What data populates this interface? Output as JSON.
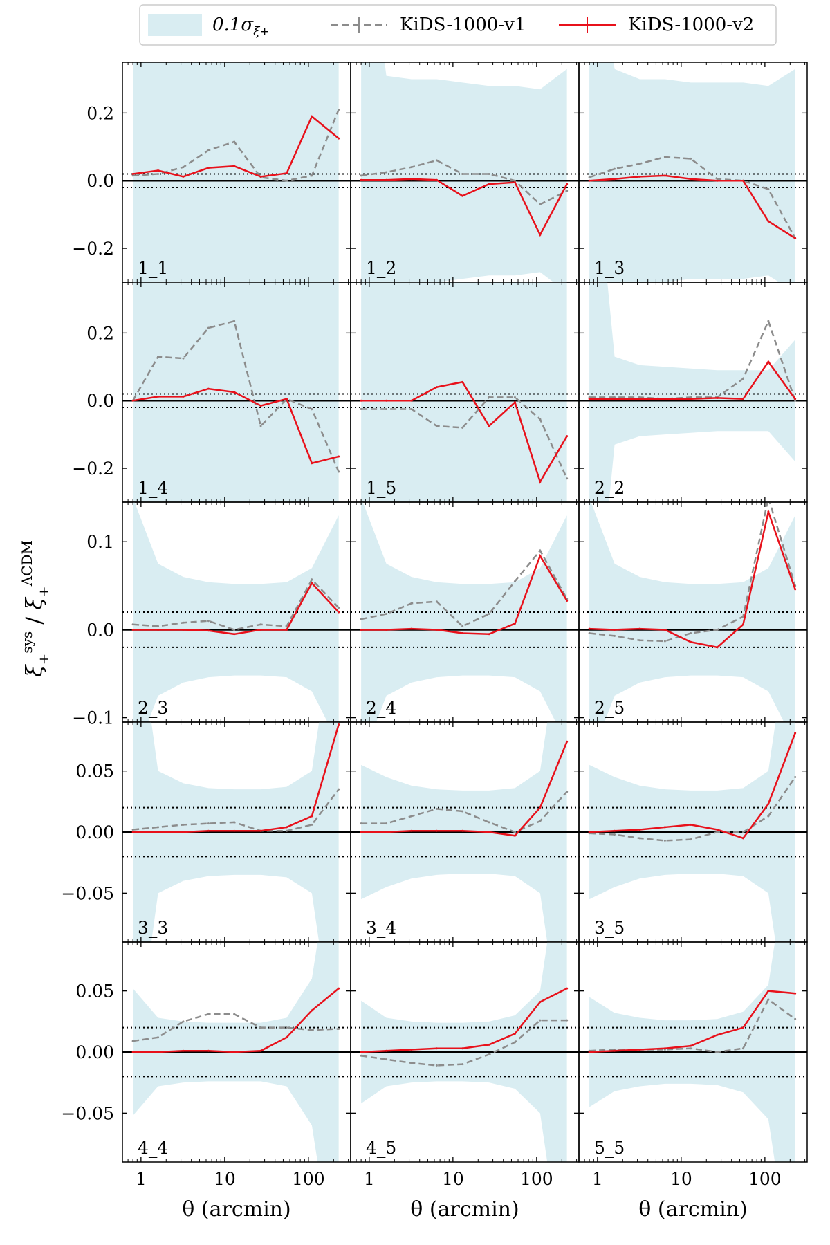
{
  "chart_data": {
    "type": "line",
    "ylabel": "ξ₊^sys / ξ₊^ΛCDM",
    "xlabel": "θ (arcmin)",
    "x_scale": "log",
    "xlim": [
      0.6,
      320
    ],
    "x_ticks": [
      1,
      10,
      100
    ],
    "x_tick_labels": [
      "1",
      "10",
      "100"
    ],
    "reference_lines": {
      "zero": 0,
      "dotted": [
        0.02,
        -0.02
      ]
    },
    "legend": {
      "placement": "top-center",
      "band": "0.1σ",
      "band_subscript": "ξ+",
      "series": [
        "KiDS-1000-v1",
        "KiDS-1000-v2"
      ]
    },
    "colors": {
      "band": "#d9edf2",
      "v1": "#8c8c8c",
      "v2": "#e8111b",
      "axes": "#000000"
    },
    "x": [
      0.8,
      1.6,
      3.2,
      6.4,
      13,
      27,
      55,
      110,
      230
    ],
    "rows": [
      {
        "ylim": [
          -0.3,
          0.35
        ],
        "yticks": [
          -0.2,
          0.0,
          0.2
        ],
        "ytick_labels": [
          "−0.2",
          "0.0",
          "0.2"
        ],
        "panels": [
          {
            "label": "1_1",
            "band": [
              0.9,
              0.9,
              0.9,
              0.9,
              0.9,
              0.9,
              0.9,
              0.9,
              0.9
            ],
            "v1": [
              0.015,
              0.02,
              0.04,
              0.09,
              0.115,
              0.01,
              0.0,
              0.015,
              0.21
            ],
            "v2": [
              0.02,
              0.03,
              0.012,
              0.038,
              0.043,
              0.012,
              0.022,
              0.19,
              0.125
            ]
          },
          {
            "label": "1_2",
            "band": [
              0.9,
              0.31,
              0.3,
              0.3,
              0.29,
              0.28,
              0.28,
              0.27,
              0.33
            ],
            "v1": [
              0.015,
              0.025,
              0.04,
              0.06,
              0.02,
              0.02,
              0.0,
              -0.07,
              -0.03
            ],
            "v2": [
              0.002,
              0.002,
              0.005,
              0.002,
              -0.045,
              -0.01,
              -0.005,
              -0.16,
              -0.01
            ]
          },
          {
            "label": "1_3",
            "band": [
              0.9,
              0.33,
              0.3,
              0.3,
              0.29,
              0.29,
              0.29,
              0.28,
              0.33
            ],
            "v1": [
              0.01,
              0.035,
              0.05,
              0.07,
              0.065,
              0.005,
              0.0,
              -0.025,
              -0.17
            ],
            "v2": [
              0.0,
              0.005,
              0.012,
              0.015,
              0.005,
              0.0,
              0.0,
              -0.12,
              -0.17
            ]
          }
        ]
      },
      {
        "ylim": [
          -0.3,
          0.35
        ],
        "yticks": [
          -0.2,
          0.0,
          0.2
        ],
        "ytick_labels": [
          "−0.2",
          "0.0",
          "0.2"
        ],
        "panels": [
          {
            "label": "1_4",
            "band": [
              0.9,
              0.9,
              0.9,
              0.9,
              0.9,
              0.9,
              0.9,
              0.9,
              0.9
            ],
            "v1": [
              0.0,
              0.13,
              0.125,
              0.215,
              0.235,
              -0.075,
              0.005,
              -0.025,
              -0.21
            ],
            "v2": [
              0.0,
              0.012,
              0.012,
              0.035,
              0.025,
              -0.015,
              0.005,
              -0.185,
              -0.165
            ]
          },
          {
            "label": "1_5",
            "band": [
              0.9,
              0.9,
              0.9,
              0.9,
              0.9,
              0.9,
              0.9,
              0.9,
              0.9
            ],
            "v1": [
              -0.025,
              -0.025,
              -0.025,
              -0.075,
              -0.08,
              0.01,
              0.01,
              -0.055,
              -0.23
            ],
            "v2": [
              0.0,
              0.0,
              0.0,
              0.04,
              0.055,
              -0.075,
              -0.005,
              -0.24,
              -0.105
            ]
          },
          {
            "label": "2_2",
            "band": [
              0.9,
              0.13,
              0.105,
              0.1,
              0.095,
              0.09,
              0.09,
              0.09,
              0.18
            ],
            "v1": [
              0.01,
              0.01,
              0.01,
              0.005,
              0.01,
              0.01,
              0.065,
              0.235,
              0.0
            ],
            "v2": [
              0.005,
              0.005,
              0.005,
              0.005,
              0.005,
              0.008,
              0.005,
              0.115,
              0.005
            ]
          }
        ]
      },
      {
        "ylim": [
          -0.105,
          0.145
        ],
        "yticks": [
          -0.1,
          0.0,
          0.1
        ],
        "ytick_labels": [
          "−0.1",
          "0.0",
          "0.1"
        ],
        "panels": [
          {
            "label": "2_3",
            "band": [
              0.15,
              0.075,
              0.06,
              0.054,
              0.052,
              0.052,
              0.054,
              0.07,
              0.13
            ],
            "v1": [
              0.006,
              0.004,
              0.008,
              0.01,
              0.0,
              0.006,
              0.004,
              0.057,
              0.025
            ],
            "v2": [
              0.0,
              0.0,
              0.0,
              -0.001,
              -0.005,
              0.0,
              0.0,
              0.053,
              0.02
            ]
          },
          {
            "label": "2_4",
            "band": [
              0.15,
              0.075,
              0.06,
              0.054,
              0.052,
              0.052,
              0.054,
              0.07,
              0.13
            ],
            "v1": [
              0.012,
              0.018,
              0.03,
              0.032,
              0.004,
              0.018,
              0.055,
              0.09,
              0.035
            ],
            "v2": [
              0.0,
              0.0,
              0.001,
              0.0,
              -0.004,
              -0.005,
              0.007,
              0.084,
              0.033
            ]
          },
          {
            "label": "2_5",
            "band": [
              0.15,
              0.075,
              0.06,
              0.054,
              0.052,
              0.052,
              0.054,
              0.07,
              0.13
            ],
            "v1": [
              -0.004,
              -0.007,
              -0.012,
              -0.013,
              -0.004,
              0.0,
              0.015,
              0.15,
              0.05
            ],
            "v2": [
              0.001,
              0.0,
              0.001,
              0.0,
              -0.014,
              -0.02,
              0.006,
              0.134,
              0.046
            ]
          }
        ]
      },
      {
        "ylim": [
          -0.09,
          0.09
        ],
        "yticks": [
          -0.05,
          0.0,
          0.05
        ],
        "ytick_labels": [
          "−0.05",
          "0.00",
          "0.05"
        ],
        "panels": [
          {
            "label": "3_3",
            "band": [
              0.2,
              0.05,
              0.04,
              0.036,
              0.035,
              0.035,
              0.037,
              0.05,
              0.2
            ],
            "v1": [
              0.002,
              0.004,
              0.006,
              0.007,
              0.008,
              0.001,
              0.001,
              0.006,
              0.035
            ],
            "v2": [
              0.0,
              0.0,
              0.0,
              0.001,
              0.001,
              0.001,
              0.004,
              0.013,
              0.088
            ]
          },
          {
            "label": "3_4",
            "band": [
              0.055,
              0.045,
              0.038,
              0.035,
              0.034,
              0.034,
              0.036,
              0.05,
              0.2
            ],
            "v1": [
              0.007,
              0.007,
              0.013,
              0.019,
              0.017,
              0.008,
              0.0,
              0.009,
              0.033
            ],
            "v2": [
              0.0,
              0.0,
              0.001,
              0.001,
              0.001,
              0.0,
              -0.003,
              0.02,
              0.074
            ]
          },
          {
            "label": "3_5",
            "band": [
              0.055,
              0.045,
              0.038,
              0.035,
              0.034,
              0.034,
              0.036,
              0.05,
              0.2
            ],
            "v1": [
              -0.001,
              -0.002,
              -0.005,
              -0.007,
              -0.006,
              0.0,
              0.0,
              0.013,
              0.045
            ],
            "v2": [
              0.0,
              0.001,
              0.002,
              0.004,
              0.006,
              0.002,
              -0.005,
              0.023,
              0.081
            ]
          }
        ]
      },
      {
        "ylim": [
          -0.09,
          0.09
        ],
        "yticks": [
          -0.05,
          0.0,
          0.05
        ],
        "ytick_labels": [
          "−0.05",
          "0.00",
          "0.05"
        ],
        "panels": [
          {
            "label": "4_4",
            "band": [
              0.052,
              0.028,
              0.025,
              0.024,
              0.024,
              0.024,
              0.028,
              0.06,
              0.2
            ],
            "v1": [
              0.009,
              0.012,
              0.025,
              0.031,
              0.031,
              0.02,
              0.02,
              0.018,
              0.019
            ],
            "v2": [
              0.0,
              0.0,
              0.001,
              0.001,
              0.0,
              0.001,
              0.012,
              0.034,
              0.052
            ]
          },
          {
            "label": "4_5",
            "band": [
              0.042,
              0.028,
              0.025,
              0.024,
              0.024,
              0.025,
              0.03,
              0.05,
              0.2
            ],
            "v1": [
              -0.003,
              -0.006,
              -0.009,
              -0.011,
              -0.01,
              -0.002,
              0.008,
              0.026,
              0.026
            ],
            "v2": [
              0.0,
              0.001,
              0.002,
              0.003,
              0.003,
              0.006,
              0.015,
              0.041,
              0.052
            ]
          },
          {
            "label": "5_5",
            "band": [
              0.045,
              0.032,
              0.028,
              0.026,
              0.026,
              0.027,
              0.033,
              0.055,
              0.2
            ],
            "v1": [
              0.001,
              0.002,
              0.002,
              0.002,
              0.003,
              0.0,
              0.003,
              0.043,
              0.027
            ],
            "v2": [
              0.0,
              0.001,
              0.002,
              0.003,
              0.005,
              0.014,
              0.02,
              0.05,
              0.048
            ]
          }
        ]
      }
    ]
  }
}
